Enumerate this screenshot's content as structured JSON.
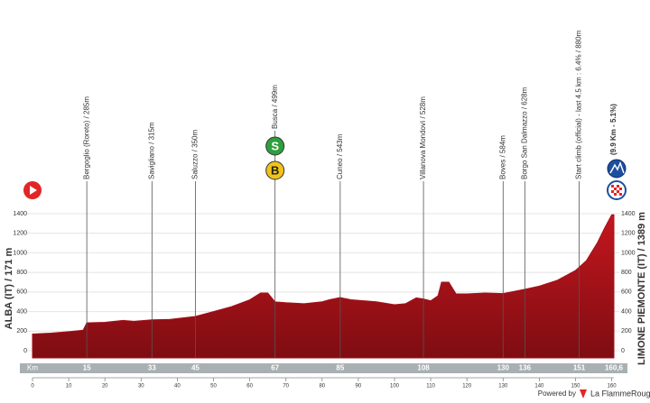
{
  "chart_data": {
    "type": "area",
    "start_label": "ALBA (IT) / 171 m",
    "finish_label": "LIMONE PIEMONTE (IT) / 1389 m",
    "km_title": "Km",
    "x": [
      0,
      5,
      10,
      14,
      15,
      20,
      25,
      28,
      33,
      38,
      45,
      50,
      55,
      60,
      63,
      65,
      67,
      70,
      75,
      80,
      82,
      85,
      88,
      95,
      100,
      103,
      106,
      108,
      110,
      112,
      113,
      115,
      117,
      120,
      125,
      130,
      136,
      140,
      145,
      150,
      153,
      156,
      158,
      160,
      160.6
    ],
    "values": [
      171,
      180,
      195,
      210,
      285,
      290,
      310,
      300,
      315,
      320,
      350,
      400,
      450,
      520,
      590,
      590,
      499,
      490,
      480,
      500,
      520,
      543,
      520,
      500,
      470,
      480,
      540,
      528,
      510,
      560,
      700,
      700,
      580,
      580,
      590,
      584,
      628,
      660,
      720,
      820,
      920,
      1100,
      1250,
      1389,
      1389
    ],
    "color": "#a3121b",
    "xlim": [
      0,
      160.6
    ],
    "ylim": [
      0,
      1400
    ],
    "yticks": [
      0,
      200,
      400,
      600,
      800,
      1000,
      1200,
      1400
    ],
    "xticks": [
      0,
      10,
      20,
      30,
      40,
      50,
      60,
      70,
      80,
      90,
      100,
      110,
      120,
      130,
      140,
      150,
      160
    ],
    "grid": true,
    "km_markers": [
      15,
      33,
      45,
      67,
      85,
      108,
      130,
      136,
      151,
      {
        "value": 160.6,
        "label": "160,6"
      }
    ],
    "waypoints": [
      {
        "km": 15,
        "label": "Bergoglio (Roreto) / 285m"
      },
      {
        "km": 33,
        "label": "Savigliano / 315m"
      },
      {
        "km": 45,
        "label": "Saluzzo / 350m"
      },
      {
        "km": 67,
        "label": "Busca / 499m",
        "icons": [
          "S",
          "B"
        ]
      },
      {
        "km": 85,
        "label": "Cuneo / 543m"
      },
      {
        "km": 108,
        "label": "Villanova Mondovì / 528m"
      },
      {
        "km": 130,
        "label": "Boves / 584m"
      },
      {
        "km": 136,
        "label": "Borgo San Dalmazzo / 628m"
      },
      {
        "km": 151,
        "label": "Start climb (official) - last 4.5 km : 6.4% / 880m"
      },
      {
        "km": 160.6,
        "label": "(9.9 Km - 5.1%)"
      }
    ],
    "powered_by": "Powered by",
    "brand": "La FlammeRouge"
  }
}
